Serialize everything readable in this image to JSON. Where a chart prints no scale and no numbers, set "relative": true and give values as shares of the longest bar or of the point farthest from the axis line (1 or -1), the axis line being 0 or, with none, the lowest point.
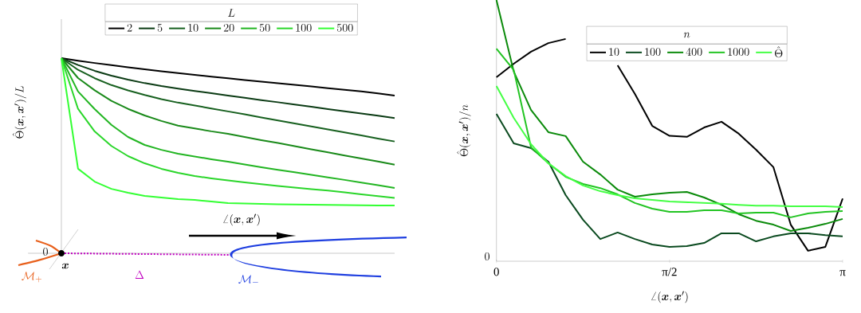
{
  "chart_data": [
    {
      "type": "line",
      "relative": true,
      "tick_labels": false,
      "legend": "top",
      "legend_title": "L",
      "ylabel": "\\hat{\\Theta}(\\boldsymbol{x},\\boldsymbol{x}')/L",
      "annotations": [
        "0",
        "\\boldsymbol{x}",
        "\\mathcal{M}_+",
        "\\Delta",
        "\\mathcal{M}_-",
        "\\angle(\\boldsymbol{x},\\boldsymbol{x}')"
      ],
      "categories": [
        null,
        null,
        null,
        null,
        null,
        null,
        null,
        null,
        null,
        null,
        null,
        null,
        null,
        null,
        null,
        null,
        null,
        null,
        null,
        null,
        null
      ],
      "series": [
        {
          "name": "2",
          "color": "#000000",
          "values": [
            1,
            0.987,
            0.975,
            0.964,
            0.953,
            0.943,
            0.933,
            0.923,
            0.914,
            0.905,
            0.897,
            0.888,
            0.88,
            0.871,
            0.863,
            0.855,
            0.846,
            0.838,
            0.83,
            0.819,
            0.808
          ]
        },
        {
          "name": "5",
          "color": "#0b3b14",
          "values": [
            1,
            0.965,
            0.935,
            0.91,
            0.89,
            0.872,
            0.857,
            0.844,
            0.832,
            0.82,
            0.808,
            0.797,
            0.785,
            0.774,
            0.762,
            0.751,
            0.739,
            0.728,
            0.716,
            0.705,
            0.693
          ]
        },
        {
          "name": "10",
          "color": "#17601f",
          "values": [
            1,
            0.94,
            0.897,
            0.862,
            0.835,
            0.811,
            0.79,
            0.772,
            0.757,
            0.742,
            0.727,
            0.712,
            0.696,
            0.681,
            0.665,
            0.65,
            0.635,
            0.619,
            0.604,
            0.588,
            0.573
          ]
        },
        {
          "name": "20",
          "color": "#1a8a1a",
          "values": [
            1,
            0.898,
            0.835,
            0.781,
            0.74,
            0.706,
            0.678,
            0.654,
            0.64,
            0.625,
            0.612,
            0.596,
            0.58,
            0.565,
            0.549,
            0.533,
            0.517,
            0.501,
            0.486,
            0.47,
            0.454
          ]
        },
        {
          "name": "50",
          "color": "#22b522",
          "values": [
            1,
            0.829,
            0.739,
            0.658,
            0.596,
            0.555,
            0.53,
            0.51,
            0.496,
            0.482,
            0.469,
            0.455,
            0.441,
            0.428,
            0.415,
            0.402,
            0.389,
            0.376,
            0.362,
            0.349,
            0.335
          ]
        },
        {
          "name": "100",
          "color": "#2ad62a",
          "values": [
            1,
            0.74,
            0.624,
            0.55,
            0.498,
            0.461,
            0.433,
            0.412,
            0.396,
            0.384,
            0.373,
            0.363,
            0.354,
            0.345,
            0.337,
            0.329,
            0.321,
            0.312,
            0.302,
            0.293,
            0.284
          ]
        },
        {
          "name": "500",
          "color": "#33ff33",
          "values": [
            1,
            0.433,
            0.367,
            0.33,
            0.31,
            0.294,
            0.286,
            0.278,
            0.273,
            0.265,
            0.257,
            0.255,
            0.253,
            0.251,
            0.25,
            0.249,
            0.248,
            0.247,
            0.246,
            0.245,
            0.245
          ]
        }
      ]
    },
    {
      "type": "line",
      "relative": true,
      "tick_labels": "x",
      "legend": "top",
      "legend_title": "n",
      "xlabel": "\\angle(\\boldsymbol{x},\\boldsymbol{x}')",
      "ylabel": "\\hat{\\Theta}(\\boldsymbol{x},\\boldsymbol{x}')/n",
      "annotations": [
        "0"
      ],
      "categories": [
        "0",
        null,
        null,
        null,
        null,
        null,
        null,
        null,
        null,
        null,
        "π/2",
        null,
        null,
        null,
        null,
        null,
        null,
        null,
        null,
        null,
        "π"
      ],
      "series": [
        {
          "name": "10",
          "color": "#000000",
          "values": [
            0.704,
            0.756,
            0.802,
            0.835,
            0.851,
            null,
            null,
            0.75,
            0.64,
            0.518,
            0.48,
            0.476,
            0.512,
            0.534,
            0.488,
            0.427,
            0.36,
            0.14,
            0.04,
            0.055,
            0.24
          ]
        },
        {
          "name": "100",
          "color": "#0a4a1f",
          "values": [
            0.564,
            0.451,
            0.433,
            0.381,
            0.253,
            0.159,
            0.085,
            0.11,
            0.085,
            0.064,
            0.055,
            0.058,
            0.07,
            0.107,
            0.107,
            0.076,
            0.095,
            0.107,
            0.107,
            0.1,
            0.095
          ]
        },
        {
          "name": "400",
          "color": "#0a8a0a",
          "values": [
            1,
            0.726,
            0.579,
            0.494,
            0.479,
            0.381,
            0.332,
            0.274,
            0.247,
            0.256,
            0.262,
            0.265,
            0.244,
            0.216,
            0.18,
            0.155,
            0.14,
            0.116,
            0.128,
            0.143,
            0.162
          ]
        },
        {
          "name": "1000",
          "color": "#22c422",
          "values": [
            0.814,
            0.732,
            0.436,
            0.375,
            0.323,
            0.296,
            0.28,
            0.256,
            0.223,
            0.201,
            0.189,
            0.189,
            0.195,
            0.195,
            0.183,
            0.186,
            0.186,
            0.168,
            0.183,
            0.189,
            0.192
          ]
        },
        {
          "name": "\\hat{\\Theta}",
          "color": "#44ff44",
          "values": [
            0.671,
            0.549,
            0.448,
            0.375,
            0.326,
            0.29,
            0.268,
            0.253,
            0.241,
            0.235,
            0.229,
            0.226,
            0.223,
            0.22,
            0.216,
            0.213,
            0.213,
            0.21,
            0.21,
            0.21,
            0.207
          ]
        }
      ]
    }
  ]
}
